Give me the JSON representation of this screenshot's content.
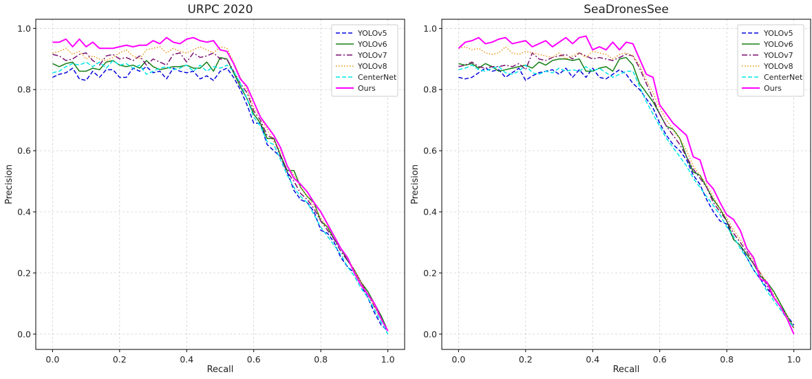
{
  "chart_data": [
    {
      "type": "line",
      "title": "URPC 2020",
      "xlabel": "Recall",
      "ylabel": "Precision",
      "xlim": [
        -0.05,
        1.05
      ],
      "ylim": [
        -0.05,
        1.03
      ],
      "xticks": [
        "0.0",
        "0.2",
        "0.4",
        "0.6",
        "0.8",
        "1.0"
      ],
      "yticks": [
        "0.0",
        "0.2",
        "0.4",
        "0.6",
        "0.8",
        "1.0"
      ],
      "grid": true,
      "legend_position": "top-right",
      "x": [
        0.0,
        0.02,
        0.04,
        0.06,
        0.08,
        0.1,
        0.12,
        0.14,
        0.16,
        0.18,
        0.2,
        0.22,
        0.24,
        0.26,
        0.28,
        0.3,
        0.32,
        0.34,
        0.36,
        0.38,
        0.4,
        0.42,
        0.44,
        0.46,
        0.48,
        0.5,
        0.52,
        0.54,
        0.56,
        0.58,
        0.6,
        0.62,
        0.64,
        0.66,
        0.68,
        0.7,
        0.72,
        0.74,
        0.76,
        0.78,
        0.8,
        0.82,
        0.84,
        0.86,
        0.88,
        0.9,
        0.92,
        0.94,
        0.96,
        0.98,
        1.0
      ],
      "series": [
        {
          "name": "YOLOv5",
          "color": "#0000dd",
          "style": "dashed",
          "values": [
            0.84,
            0.85,
            0.855,
            0.87,
            0.835,
            0.83,
            0.86,
            0.84,
            0.865,
            0.865,
            0.84,
            0.84,
            0.87,
            0.86,
            0.875,
            0.855,
            0.86,
            0.835,
            0.87,
            0.86,
            0.855,
            0.86,
            0.835,
            0.845,
            0.83,
            0.86,
            0.87,
            0.84,
            0.8,
            0.75,
            0.69,
            0.69,
            0.62,
            0.6,
            0.58,
            0.53,
            0.47,
            0.44,
            0.43,
            0.4,
            0.34,
            0.33,
            0.3,
            0.25,
            0.22,
            0.2,
            0.16,
            0.12,
            0.07,
            0.03,
            0.01
          ]
        },
        {
          "name": "YOLOv6",
          "color": "#137d13",
          "style": "solid",
          "values": [
            0.885,
            0.875,
            0.885,
            0.89,
            0.86,
            0.86,
            0.87,
            0.865,
            0.89,
            0.895,
            0.88,
            0.875,
            0.88,
            0.87,
            0.895,
            0.875,
            0.865,
            0.87,
            0.875,
            0.875,
            0.88,
            0.87,
            0.87,
            0.89,
            0.86,
            0.905,
            0.9,
            0.855,
            0.81,
            0.77,
            0.72,
            0.69,
            0.64,
            0.64,
            0.585,
            0.535,
            0.535,
            0.48,
            0.45,
            0.43,
            0.37,
            0.35,
            0.31,
            0.28,
            0.24,
            0.21,
            0.17,
            0.14,
            0.1,
            0.06,
            0.01
          ]
        },
        {
          "name": "YOLOv7",
          "color": "#7a0d6e",
          "style": "dashdot",
          "values": [
            0.915,
            0.91,
            0.895,
            0.9,
            0.915,
            0.92,
            0.895,
            0.88,
            0.91,
            0.915,
            0.9,
            0.905,
            0.895,
            0.91,
            0.88,
            0.9,
            0.89,
            0.88,
            0.915,
            0.92,
            0.89,
            0.92,
            0.905,
            0.91,
            0.92,
            0.9,
            0.9,
            0.86,
            0.82,
            0.79,
            0.73,
            0.7,
            0.65,
            0.64,
            0.58,
            0.53,
            0.5,
            0.46,
            0.44,
            0.41,
            0.37,
            0.34,
            0.31,
            0.27,
            0.24,
            0.21,
            0.17,
            0.13,
            0.09,
            0.05,
            0.01
          ]
        },
        {
          "name": "YOLOv8",
          "color": "#e69510",
          "style": "dotted",
          "values": [
            0.92,
            0.925,
            0.935,
            0.915,
            0.925,
            0.9,
            0.91,
            0.9,
            0.895,
            0.905,
            0.92,
            0.93,
            0.91,
            0.9,
            0.93,
            0.935,
            0.94,
            0.92,
            0.935,
            0.925,
            0.92,
            0.93,
            0.94,
            0.93,
            0.92,
            0.94,
            0.935,
            0.89,
            0.84,
            0.8,
            0.74,
            0.71,
            0.67,
            0.63,
            0.6,
            0.55,
            0.52,
            0.48,
            0.45,
            0.42,
            0.38,
            0.35,
            0.32,
            0.28,
            0.25,
            0.21,
            0.17,
            0.13,
            0.09,
            0.05,
            0.01
          ]
        },
        {
          "name": "CenterNet",
          "color": "#00e5e5",
          "style": "dashed",
          "values": [
            0.855,
            0.86,
            0.875,
            0.885,
            0.88,
            0.89,
            0.875,
            0.89,
            0.87,
            0.895,
            0.88,
            0.885,
            0.87,
            0.88,
            0.85,
            0.86,
            0.87,
            0.875,
            0.865,
            0.87,
            0.88,
            0.86,
            0.88,
            0.86,
            0.875,
            0.87,
            0.88,
            0.86,
            0.82,
            0.77,
            0.71,
            0.68,
            0.63,
            0.62,
            0.57,
            0.52,
            0.48,
            0.45,
            0.43,
            0.39,
            0.35,
            0.32,
            0.29,
            0.26,
            0.22,
            0.19,
            0.15,
            0.12,
            0.08,
            0.04,
            0.0
          ]
        },
        {
          "name": "Ours",
          "color": "#ff00ff",
          "style": "solid",
          "values": [
            0.955,
            0.955,
            0.965,
            0.94,
            0.965,
            0.94,
            0.955,
            0.935,
            0.935,
            0.935,
            0.94,
            0.945,
            0.94,
            0.945,
            0.945,
            0.96,
            0.95,
            0.97,
            0.955,
            0.95,
            0.965,
            0.97,
            0.96,
            0.955,
            0.96,
            0.93,
            0.925,
            0.885,
            0.835,
            0.81,
            0.76,
            0.71,
            0.68,
            0.65,
            0.61,
            0.55,
            0.51,
            0.49,
            0.465,
            0.43,
            0.4,
            0.36,
            0.32,
            0.28,
            0.25,
            0.2,
            0.16,
            0.13,
            0.1,
            0.05,
            0.01
          ]
        }
      ]
    },
    {
      "type": "line",
      "title": "SeaDronesSee",
      "xlabel": "Recall",
      "ylabel": "Precision",
      "xlim": [
        -0.05,
        1.05
      ],
      "ylim": [
        -0.05,
        1.03
      ],
      "xticks": [
        "0.0",
        "0.2",
        "0.4",
        "0.6",
        "0.8",
        "1.0"
      ],
      "yticks": [
        "0.0",
        "0.2",
        "0.4",
        "0.6",
        "0.8",
        "1.0"
      ],
      "grid": true,
      "legend_position": "top-right",
      "x": [
        0.0,
        0.02,
        0.04,
        0.06,
        0.08,
        0.1,
        0.12,
        0.14,
        0.16,
        0.18,
        0.2,
        0.22,
        0.24,
        0.26,
        0.28,
        0.3,
        0.32,
        0.34,
        0.36,
        0.38,
        0.4,
        0.42,
        0.44,
        0.46,
        0.48,
        0.5,
        0.52,
        0.54,
        0.56,
        0.58,
        0.6,
        0.62,
        0.64,
        0.66,
        0.68,
        0.7,
        0.72,
        0.74,
        0.76,
        0.78,
        0.8,
        0.82,
        0.84,
        0.86,
        0.88,
        0.9,
        0.92,
        0.94,
        0.96,
        0.98,
        1.0
      ],
      "series": [
        {
          "name": "YOLOv5",
          "color": "#0000dd",
          "style": "dashed",
          "values": [
            0.84,
            0.835,
            0.84,
            0.855,
            0.87,
            0.86,
            0.865,
            0.84,
            0.855,
            0.87,
            0.83,
            0.845,
            0.855,
            0.86,
            0.865,
            0.85,
            0.87,
            0.84,
            0.865,
            0.84,
            0.87,
            0.84,
            0.835,
            0.85,
            0.865,
            0.85,
            0.82,
            0.8,
            0.77,
            0.74,
            0.69,
            0.65,
            0.62,
            0.6,
            0.57,
            0.52,
            0.49,
            0.44,
            0.4,
            0.37,
            0.36,
            0.31,
            0.29,
            0.25,
            0.21,
            0.18,
            0.15,
            0.12,
            0.09,
            0.06,
            0.03
          ]
        },
        {
          "name": "YOLOv6",
          "color": "#137d13",
          "style": "solid",
          "values": [
            0.885,
            0.88,
            0.885,
            0.87,
            0.885,
            0.875,
            0.86,
            0.865,
            0.87,
            0.875,
            0.88,
            0.87,
            0.89,
            0.88,
            0.895,
            0.9,
            0.9,
            0.895,
            0.9,
            0.86,
            0.86,
            0.87,
            0.875,
            0.86,
            0.9,
            0.905,
            0.88,
            0.82,
            0.79,
            0.76,
            0.72,
            0.68,
            0.67,
            0.64,
            0.58,
            0.53,
            0.52,
            0.48,
            0.44,
            0.41,
            0.37,
            0.31,
            0.29,
            0.26,
            0.23,
            0.19,
            0.17,
            0.14,
            0.1,
            0.06,
            0.02
          ]
        },
        {
          "name": "YOLOv7",
          "color": "#7a0d6e",
          "style": "dashdot",
          "values": [
            0.875,
            0.88,
            0.89,
            0.875,
            0.87,
            0.875,
            0.875,
            0.88,
            0.875,
            0.885,
            0.865,
            0.92,
            0.9,
            0.895,
            0.905,
            0.91,
            0.915,
            0.9,
            0.92,
            0.91,
            0.9,
            0.905,
            0.9,
            0.895,
            0.905,
            0.915,
            0.91,
            0.87,
            0.82,
            0.77,
            0.72,
            0.68,
            0.65,
            0.62,
            0.58,
            0.54,
            0.51,
            0.48,
            0.43,
            0.4,
            0.37,
            0.33,
            0.3,
            0.27,
            0.23,
            0.2,
            0.16,
            0.12,
            0.09,
            0.05,
            0.02
          ]
        },
        {
          "name": "YOLOv8",
          "color": "#e69510",
          "style": "dotted",
          "values": [
            0.935,
            0.94,
            0.93,
            0.935,
            0.92,
            0.915,
            0.92,
            0.94,
            0.92,
            0.915,
            0.925,
            0.92,
            0.915,
            0.91,
            0.905,
            0.92,
            0.9,
            0.91,
            0.92,
            0.905,
            0.925,
            0.92,
            0.915,
            0.9,
            0.915,
            0.92,
            0.91,
            0.88,
            0.83,
            0.79,
            0.74,
            0.7,
            0.67,
            0.64,
            0.6,
            0.55,
            0.52,
            0.49,
            0.45,
            0.41,
            0.38,
            0.34,
            0.31,
            0.28,
            0.24,
            0.2,
            0.17,
            0.13,
            0.09,
            0.06,
            0.02
          ]
        },
        {
          "name": "CenterNet",
          "color": "#00e5e5",
          "style": "dashed",
          "values": [
            0.865,
            0.87,
            0.88,
            0.865,
            0.86,
            0.87,
            0.875,
            0.855,
            0.85,
            0.86,
            0.88,
            0.855,
            0.85,
            0.86,
            0.855,
            0.87,
            0.86,
            0.865,
            0.86,
            0.875,
            0.86,
            0.87,
            0.855,
            0.84,
            0.85,
            0.86,
            0.86,
            0.81,
            0.76,
            0.72,
            0.68,
            0.64,
            0.61,
            0.58,
            0.55,
            0.51,
            0.48,
            0.45,
            0.42,
            0.39,
            0.35,
            0.32,
            0.28,
            0.25,
            0.21,
            0.18,
            0.14,
            0.11,
            0.08,
            0.05,
            0.02
          ]
        },
        {
          "name": "Ours",
          "color": "#ff00ff",
          "style": "solid",
          "values": [
            0.935,
            0.955,
            0.96,
            0.97,
            0.95,
            0.955,
            0.965,
            0.97,
            0.95,
            0.955,
            0.96,
            0.94,
            0.95,
            0.96,
            0.94,
            0.955,
            0.97,
            0.95,
            0.97,
            0.975,
            0.93,
            0.94,
            0.93,
            0.955,
            0.93,
            0.955,
            0.95,
            0.9,
            0.85,
            0.84,
            0.75,
            0.72,
            0.69,
            0.67,
            0.65,
            0.58,
            0.57,
            0.5,
            0.475,
            0.43,
            0.39,
            0.375,
            0.34,
            0.28,
            0.25,
            0.18,
            0.17,
            0.12,
            0.09,
            0.05,
            0.0
          ]
        }
      ]
    }
  ]
}
